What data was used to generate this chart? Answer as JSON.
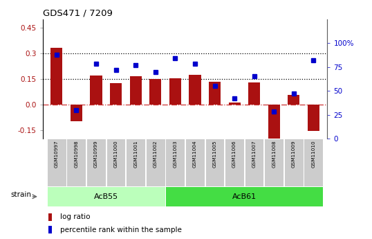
{
  "title": "GDS471 / 7209",
  "samples": [
    "GSM10997",
    "GSM10998",
    "GSM10999",
    "GSM11000",
    "GSM11001",
    "GSM11002",
    "GSM11003",
    "GSM11004",
    "GSM11005",
    "GSM11006",
    "GSM11007",
    "GSM11008",
    "GSM11009",
    "GSM11010"
  ],
  "log_ratio": [
    0.33,
    -0.1,
    0.17,
    0.125,
    0.165,
    0.15,
    0.155,
    0.175,
    0.135,
    0.01,
    0.13,
    -0.22,
    0.055,
    -0.155
  ],
  "pct_rank": [
    88,
    30,
    78,
    72,
    77,
    70,
    84,
    78,
    55,
    42,
    65,
    28,
    47,
    82
  ],
  "groups": [
    {
      "label": "AcB55",
      "start": 0,
      "end": 5,
      "color": "#bbffbb"
    },
    {
      "label": "AcB61",
      "start": 6,
      "end": 13,
      "color": "#44dd44"
    }
  ],
  "bar_color": "#aa1111",
  "dot_color": "#0000cc",
  "ylim_left": [
    -0.2,
    0.5
  ],
  "ylim_right": [
    0,
    125
  ],
  "yticks_left": [
    -0.15,
    0.0,
    0.15,
    0.3,
    0.45
  ],
  "yticks_right": [
    0,
    25,
    50,
    75,
    100
  ],
  "bg_color": "#ffffff",
  "tick_label_area_color": "#cccccc",
  "strain_label": "strain"
}
